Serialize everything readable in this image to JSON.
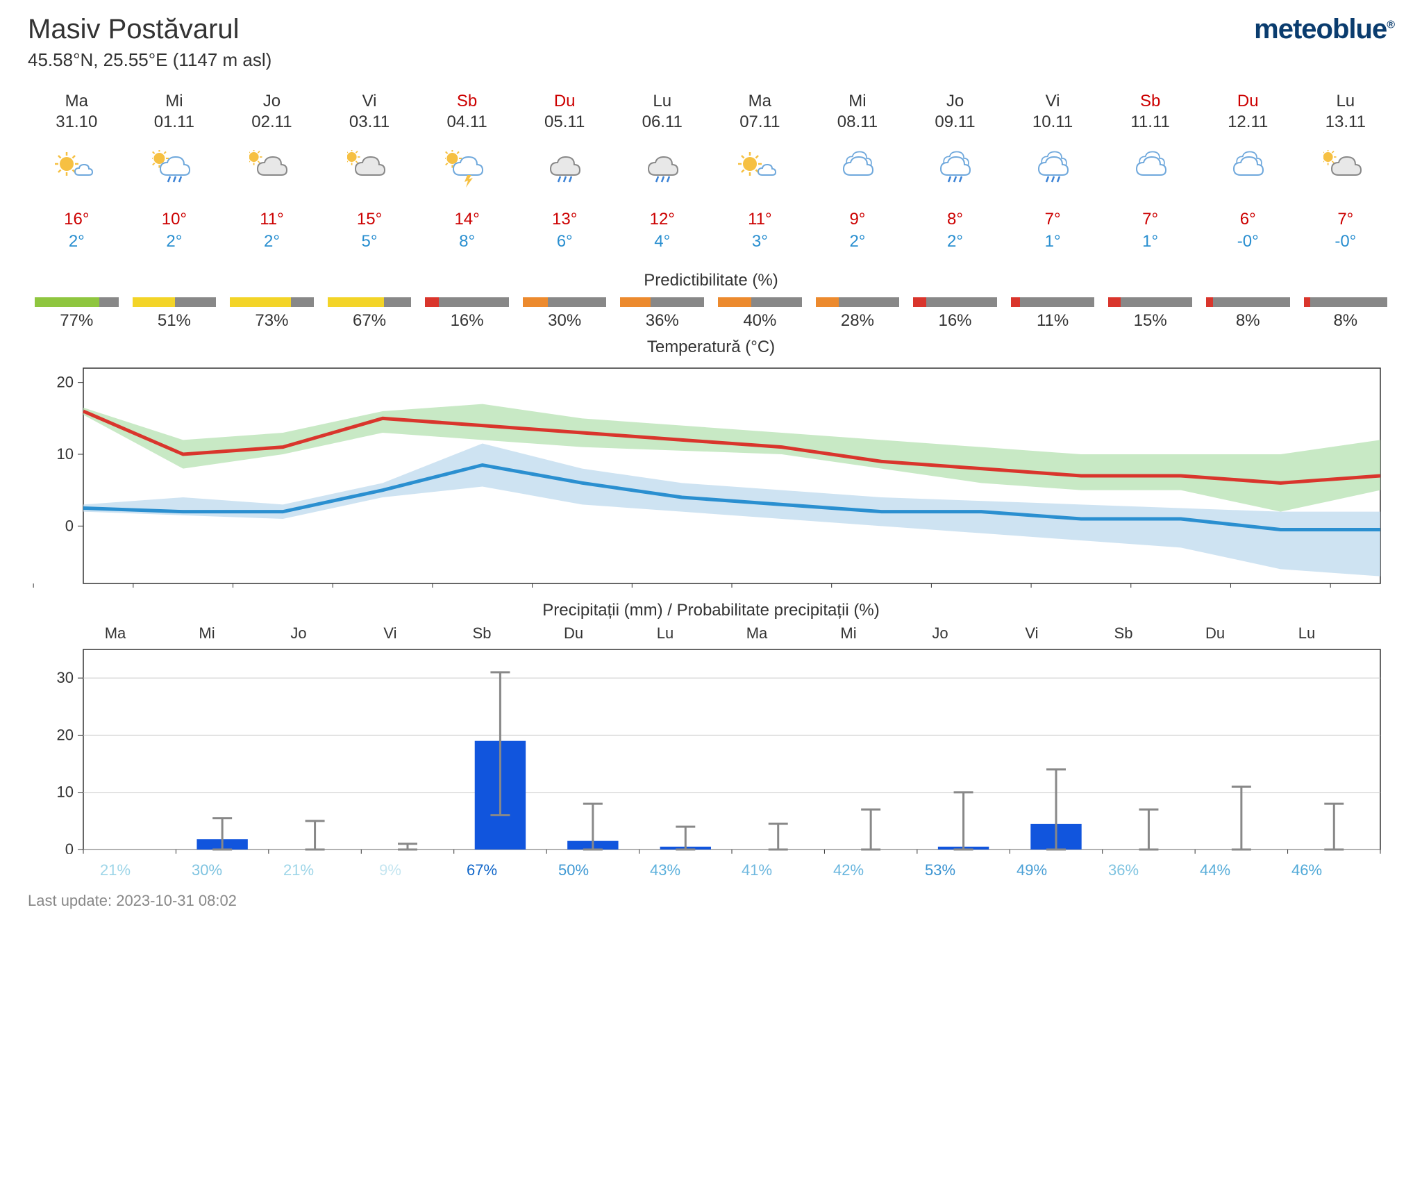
{
  "header": {
    "title": "Masiv Postăvarul",
    "subtitle": "45.58°N, 25.55°E (1147 m asl)",
    "logo_text": "meteoblue"
  },
  "days": [
    {
      "dow": "Ma",
      "date": "31.10",
      "weekend": false,
      "icon": "sun-s-cloud",
      "high": "16°",
      "low": "2°"
    },
    {
      "dow": "Mi",
      "date": "01.11",
      "weekend": false,
      "icon": "sun-cloud-rain",
      "high": "10°",
      "low": "2°"
    },
    {
      "dow": "Jo",
      "date": "02.11",
      "weekend": false,
      "icon": "cloud-sun",
      "high": "11°",
      "low": "2°"
    },
    {
      "dow": "Vi",
      "date": "03.11",
      "weekend": false,
      "icon": "cloud-sun",
      "high": "15°",
      "low": "5°"
    },
    {
      "dow": "Sb",
      "date": "04.11",
      "weekend": true,
      "icon": "sun-storm",
      "high": "14°",
      "low": "8°"
    },
    {
      "dow": "Du",
      "date": "05.11",
      "weekend": true,
      "icon": "cloud-rain",
      "high": "13°",
      "low": "6°"
    },
    {
      "dow": "Lu",
      "date": "06.11",
      "weekend": false,
      "icon": "cloud-rain",
      "high": "12°",
      "low": "4°"
    },
    {
      "dow": "Ma",
      "date": "07.11",
      "weekend": false,
      "icon": "sun-s-cloud",
      "high": "11°",
      "low": "3°"
    },
    {
      "dow": "Mi",
      "date": "08.11",
      "weekend": false,
      "icon": "clouds",
      "high": "9°",
      "low": "2°"
    },
    {
      "dow": "Jo",
      "date": "09.11",
      "weekend": false,
      "icon": "clouds-rain",
      "high": "8°",
      "low": "2°"
    },
    {
      "dow": "Vi",
      "date": "10.11",
      "weekend": false,
      "icon": "clouds-rain",
      "high": "7°",
      "low": "1°"
    },
    {
      "dow": "Sb",
      "date": "11.11",
      "weekend": true,
      "icon": "clouds",
      "high": "7°",
      "low": "1°"
    },
    {
      "dow": "Du",
      "date": "12.11",
      "weekend": true,
      "icon": "clouds",
      "high": "6°",
      "low": "-0°"
    },
    {
      "dow": "Lu",
      "date": "13.11",
      "weekend": false,
      "icon": "cloud-sun",
      "high": "7°",
      "low": "-0°"
    }
  ],
  "predictability": {
    "title": "Predictibilitate (%)",
    "values": [
      77,
      51,
      73,
      67,
      16,
      30,
      36,
      40,
      28,
      16,
      11,
      15,
      8,
      8
    ],
    "colors": [
      "#8fc63f",
      "#f3d428",
      "#f3d428",
      "#f3d428",
      "#d9352c",
      "#ec8a2e",
      "#ec8a2e",
      "#ec8a2e",
      "#ec8a2e",
      "#d9352c",
      "#d9352c",
      "#d9352c",
      "#d9352c",
      "#d9352c"
    ],
    "bg_color": "#888888"
  },
  "temp_chart": {
    "title": "Temperatură (°C)",
    "ylim": [
      -8,
      22
    ],
    "yticks": [
      0,
      10,
      20
    ],
    "high_line_color": "#d9352c",
    "low_line_color": "#2a8fd0",
    "high_band_color": "#b6e2b2",
    "low_band_color": "#bdd9ee",
    "line_width": 5,
    "high": [
      16,
      10,
      11,
      15,
      14,
      13,
      12,
      11,
      9,
      8,
      7,
      7,
      6,
      7
    ],
    "high_upper": [
      16.5,
      12,
      13,
      16,
      17,
      15,
      14,
      13,
      12,
      11,
      10,
      10,
      10,
      12
    ],
    "high_lower": [
      15.5,
      8,
      10,
      13,
      12,
      11,
      10.5,
      10,
      8,
      6,
      5,
      5,
      2,
      5
    ],
    "low": [
      2.5,
      2,
      2,
      5,
      8.5,
      6,
      4,
      3,
      2,
      2,
      1,
      1,
      -0.5,
      -0.5
    ],
    "low_upper": [
      3,
      4,
      3,
      6,
      11.5,
      8,
      6,
      5,
      4,
      3.5,
      3,
      2.5,
      2,
      2
    ],
    "low_lower": [
      2,
      1.5,
      1,
      4,
      5.5,
      3,
      2,
      1,
      0,
      -1,
      -2,
      -3,
      -6,
      -7
    ]
  },
  "precip_chart": {
    "title": "Precipitații (mm) / Probabilitate precipitații (%)",
    "ylim": [
      0,
      35
    ],
    "yticks": [
      0,
      10,
      20,
      30
    ],
    "bar_color": "#1155dd",
    "whisker_color": "#888888",
    "values": [
      0,
      1.8,
      0,
      0,
      19,
      1.5,
      0.5,
      0,
      0,
      0.5,
      4.5,
      0,
      0,
      0
    ],
    "err_high": [
      0,
      5.5,
      5,
      1,
      31,
      8,
      4,
      4.5,
      7,
      10,
      14,
      7,
      11,
      8
    ],
    "err_low": [
      0,
      0,
      0,
      0,
      6,
      0,
      0,
      0,
      0,
      0,
      0,
      0,
      0,
      0
    ],
    "prob": [
      21,
      30,
      21,
      9,
      67,
      50,
      43,
      41,
      42,
      53,
      49,
      36,
      44,
      46
    ],
    "prob_colors": [
      "#9dd5e8",
      "#7ec3e0",
      "#9dd5e8",
      "#c4e5f0",
      "#1066c9",
      "#3e98d3",
      "#5bb0dc",
      "#6fb8df",
      "#67b5de",
      "#3892d1",
      "#4ba0d6",
      "#7ec3e0",
      "#58add9",
      "#50a9d8"
    ]
  },
  "footer": {
    "text": "Last update: 2023-10-31 08:02"
  }
}
